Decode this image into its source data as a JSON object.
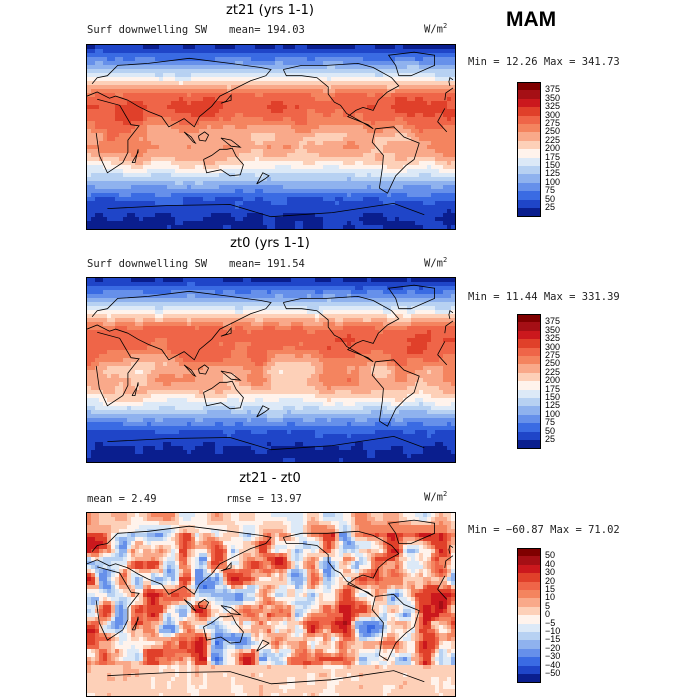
{
  "season": "MAM",
  "panels": [
    {
      "title": "zt21 (yrs 1-1)",
      "left": "Surf downwelling SW",
      "center": "mean= 194.03",
      "units_base": "W/m",
      "units_exp": "2",
      "minmax": "Min =  12.26 Max = 341.73",
      "colorbar": {
        "labels": [
          "375",
          "350",
          "325",
          "300",
          "275",
          "250",
          "225",
          "200",
          "175",
          "150",
          "125",
          "100",
          "75",
          "50",
          "25"
        ],
        "colors": [
          "#7f0000",
          "#a50f15",
          "#cb181d",
          "#e0402a",
          "#ef6548",
          "#f4845f",
          "#f9a98a",
          "#fdd0b8",
          "#fff3ec",
          "#dce9f7",
          "#b7d1f2",
          "#8fb2ee",
          "#6690ea",
          "#3a6be3",
          "#1f45c8",
          "#0a1e8e"
        ]
      },
      "kind": "abs",
      "lat_profile": [
        {
          "lat": 90,
          "v": 15
        },
        {
          "lat": 80,
          "v": 60
        },
        {
          "lat": 70,
          "v": 105
        },
        {
          "lat": 60,
          "v": 160
        },
        {
          "lat": 50,
          "v": 230
        },
        {
          "lat": 40,
          "v": 290
        },
        {
          "lat": 30,
          "v": 300
        },
        {
          "lat": 20,
          "v": 290
        },
        {
          "lat": 10,
          "v": 265
        },
        {
          "lat": 0,
          "v": 235
        },
        {
          "lat": -10,
          "v": 245
        },
        {
          "lat": -20,
          "v": 230
        },
        {
          "lat": -30,
          "v": 190
        },
        {
          "lat": -40,
          "v": 140
        },
        {
          "lat": -50,
          "v": 95
        },
        {
          "lat": -60,
          "v": 55
        },
        {
          "lat": -70,
          "v": 35
        },
        {
          "lat": -80,
          "v": 25
        },
        {
          "lat": -90,
          "v": 20
        }
      ]
    },
    {
      "title": "zt0 (yrs 1-1)",
      "left": "Surf downwelling SW",
      "center": "mean= 191.54",
      "units_base": "W/m",
      "units_exp": "2",
      "minmax": "Min =  11.44 Max = 331.39",
      "colorbar": {
        "labels": [
          "375",
          "350",
          "325",
          "300",
          "275",
          "250",
          "225",
          "200",
          "175",
          "150",
          "125",
          "100",
          "75",
          "50",
          "25"
        ],
        "colors": [
          "#7f0000",
          "#a50f15",
          "#cb181d",
          "#e0402a",
          "#ef6548",
          "#f4845f",
          "#f9a98a",
          "#fdd0b8",
          "#fff3ec",
          "#dce9f7",
          "#b7d1f2",
          "#8fb2ee",
          "#6690ea",
          "#3a6be3",
          "#1f45c8",
          "#0a1e8e"
        ]
      },
      "kind": "abs",
      "lat_profile": [
        {
          "lat": 90,
          "v": 15
        },
        {
          "lat": 80,
          "v": 60
        },
        {
          "lat": 70,
          "v": 105
        },
        {
          "lat": 60,
          "v": 160
        },
        {
          "lat": 50,
          "v": 225
        },
        {
          "lat": 40,
          "v": 285
        },
        {
          "lat": 30,
          "v": 295
        },
        {
          "lat": 20,
          "v": 285
        },
        {
          "lat": 10,
          "v": 260
        },
        {
          "lat": 0,
          "v": 230
        },
        {
          "lat": -10,
          "v": 240
        },
        {
          "lat": -20,
          "v": 225
        },
        {
          "lat": -30,
          "v": 185
        },
        {
          "lat": -40,
          "v": 135
        },
        {
          "lat": -50,
          "v": 90
        },
        {
          "lat": -60,
          "v": 50
        },
        {
          "lat": -70,
          "v": 32
        },
        {
          "lat": -80,
          "v": 22
        },
        {
          "lat": -90,
          "v": 18
        }
      ]
    },
    {
      "title": "zt21 - zt0",
      "left": "mean =    2.49",
      "center": "rmse =   13.97",
      "units_base": "W/m",
      "units_exp": "2",
      "minmax": "Min = −60.87 Max =  71.02",
      "colorbar": {
        "labels": [
          "50",
          "40",
          "30",
          "20",
          "15",
          "10",
          "5",
          "0",
          "−5",
          "−10",
          "−15",
          "−20",
          "−30",
          "−40",
          "−50"
        ],
        "colors": [
          "#7f0000",
          "#a50f15",
          "#cb181d",
          "#e0402a",
          "#ef6548",
          "#f4845f",
          "#f9a98a",
          "#fdd0b8",
          "#fff3ec",
          "#dce9f7",
          "#b7d1f2",
          "#8fb2ee",
          "#6690ea",
          "#3a6be3",
          "#1f45c8",
          "#0a1e8e"
        ]
      },
      "kind": "diff"
    }
  ],
  "chart_data": [
    {
      "type": "heatmap",
      "title": "zt21 (yrs 1-1)",
      "variable": "Surf downwelling SW",
      "units": "W/m2",
      "mean": 194.03,
      "min": 12.26,
      "max": 341.73,
      "levels": [
        25,
        50,
        75,
        100,
        125,
        150,
        175,
        200,
        225,
        250,
        275,
        300,
        325,
        350,
        375
      ]
    },
    {
      "type": "heatmap",
      "title": "zt0 (yrs 1-1)",
      "variable": "Surf downwelling SW",
      "units": "W/m2",
      "mean": 191.54,
      "min": 11.44,
      "max": 331.39,
      "levels": [
        25,
        50,
        75,
        100,
        125,
        150,
        175,
        200,
        225,
        250,
        275,
        300,
        325,
        350,
        375
      ]
    },
    {
      "type": "heatmap",
      "title": "zt21 - zt0",
      "units": "W/m2",
      "mean": 2.49,
      "rmse": 13.97,
      "min": -60.87,
      "max": 71.02,
      "levels": [
        -50,
        -40,
        -30,
        -20,
        -15,
        -10,
        -5,
        0,
        5,
        10,
        15,
        20,
        30,
        40,
        50
      ]
    }
  ]
}
